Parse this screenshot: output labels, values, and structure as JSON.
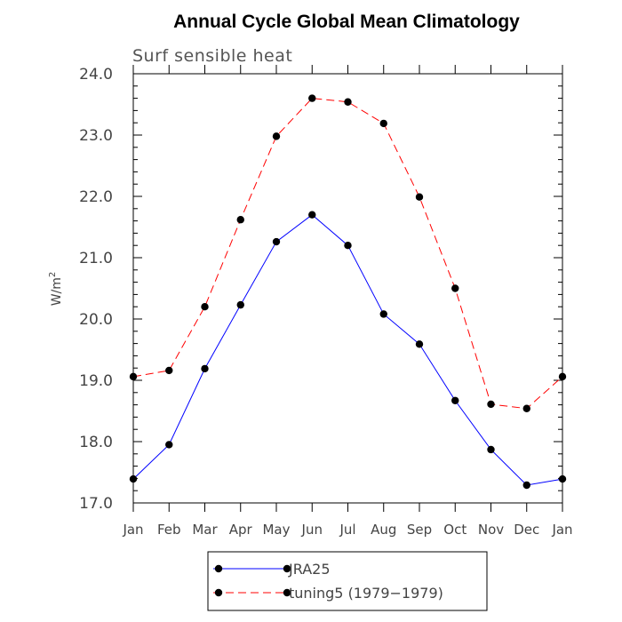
{
  "chart_data": {
    "type": "line",
    "title": "Annual Cycle Global Mean Climatology",
    "subtitle": "Surf sensible heat",
    "ylabel": "W/m",
    "ylabel_superscript": "2",
    "xlabel": "",
    "ylim": [
      17.0,
      24.0
    ],
    "yticks": [
      "17.0",
      "18.0",
      "19.0",
      "20.0",
      "21.0",
      "22.0",
      "23.0",
      "24.0"
    ],
    "categories": [
      "Jan",
      "Feb",
      "Mar",
      "Apr",
      "May",
      "Jun",
      "Jul",
      "Aug",
      "Sep",
      "Oct",
      "Nov",
      "Dec",
      "Jan"
    ],
    "grid": false,
    "legend_position": "bottom",
    "series": [
      {
        "name": "JRA25",
        "color": "#0000ff",
        "line_style": "solid",
        "marker": "circle",
        "values": [
          17.39,
          17.95,
          19.19,
          20.23,
          21.26,
          21.7,
          21.2,
          20.08,
          19.59,
          18.67,
          17.87,
          17.29,
          17.39
        ]
      },
      {
        "name": "tuning5 (1979−1979)",
        "color": "#ff0000",
        "line_style": "dashed",
        "marker": "circle",
        "values": [
          19.06,
          19.16,
          20.2,
          21.62,
          22.98,
          23.6,
          23.54,
          23.19,
          21.99,
          20.5,
          18.61,
          18.54,
          19.06
        ]
      }
    ]
  }
}
